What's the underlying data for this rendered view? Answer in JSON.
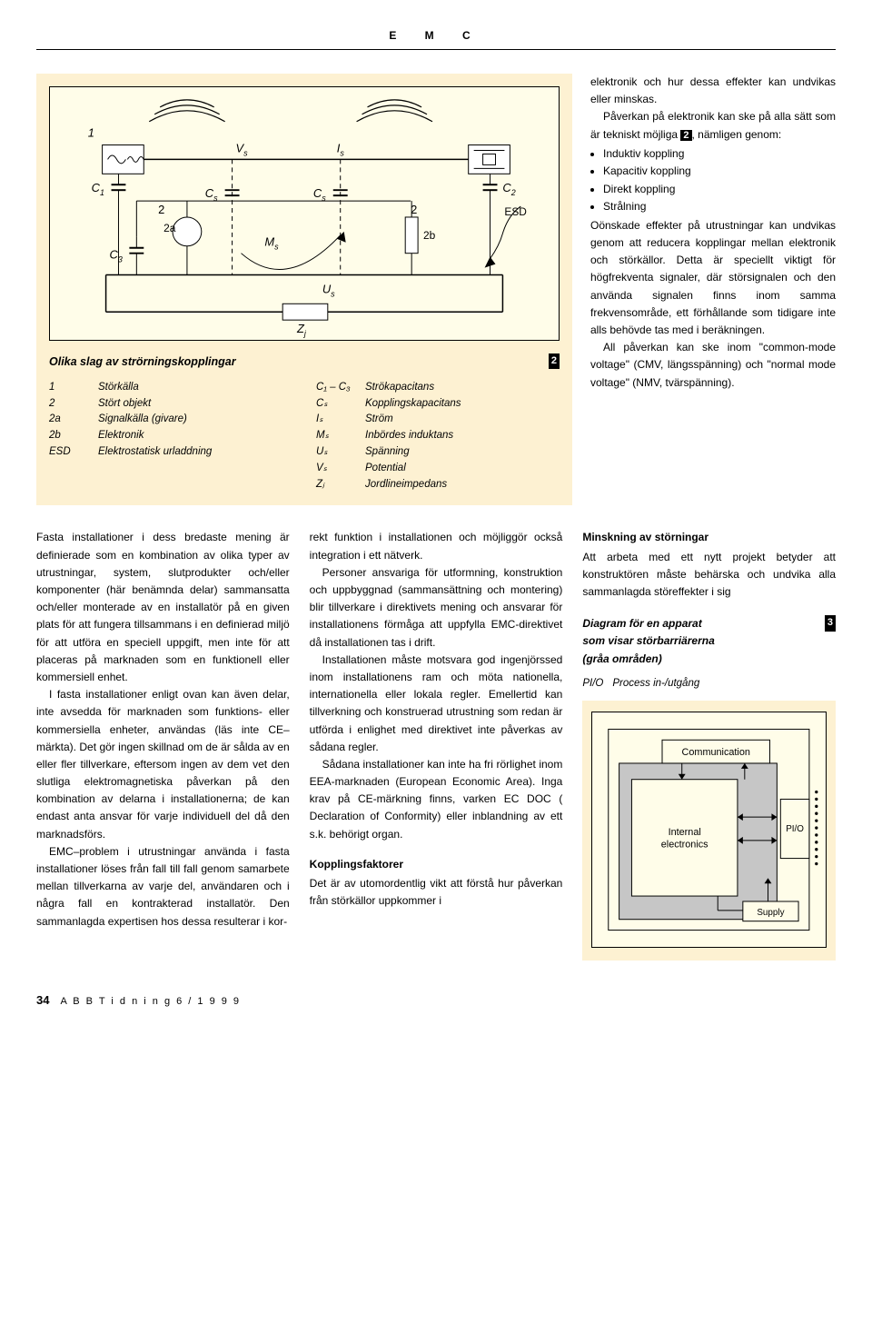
{
  "header": {
    "letters": "E M C"
  },
  "fig2": {
    "title": "Olika slag av strörningskopplingar",
    "number": "2",
    "circuit": {
      "labels": {
        "one": "1",
        "Vs": "V",
        "Vs_sub": "s",
        "Is": "I",
        "Is_sub": "s",
        "C1": "C",
        "C1_sub": "1",
        "C2": "C",
        "C2_sub": "2",
        "C3": "C",
        "C3_sub": "3",
        "Cs_a": "C",
        "Cs_a_sub": "s",
        "Cs_b": "C",
        "Cs_b_sub": "s",
        "Ms": "M",
        "Ms_sub": "s",
        "Us": "U",
        "Us_sub": "s",
        "Zj": "Z",
        "Zj_sub": "j",
        "two_a_outer": "2",
        "two_a": "2a",
        "two_b_outer": "2",
        "two_b": "2b",
        "ESD": "ESD"
      },
      "colors": {
        "wire": "#000000",
        "dashed": "#000000",
        "bg": "#fffde9"
      }
    },
    "legend_left": [
      {
        "k": "1",
        "v": "Störkälla"
      },
      {
        "k": "2",
        "v": "Stört objekt"
      },
      {
        "k": "2a",
        "v": "Signalkälla (givare)"
      },
      {
        "k": "2b",
        "v": "Elektronik"
      },
      {
        "k": "",
        "v": ""
      },
      {
        "k": "ESD",
        "v": "Elektrostatisk urladdning"
      }
    ],
    "legend_right": [
      {
        "k": "C₁ – C₃",
        "v": "Strökapacitans"
      },
      {
        "k": "Cₛ",
        "v": "Kopplingskapacitans"
      },
      {
        "k": "Iₛ",
        "v": "Ström"
      },
      {
        "k": "Mₛ",
        "v": "Inbördes induktans"
      },
      {
        "k": "Uₛ",
        "v": "Spänning"
      },
      {
        "k": "Vₛ",
        "v": "Potential"
      },
      {
        "k": "Zⱼ",
        "v": "Jordlineimpedans"
      }
    ]
  },
  "right_col": {
    "p1": "elektronik och hur dessa effekter kan undvikas eller minskas.",
    "p2a": "Påverkan på elektronik kan ske på alla sätt som är tekniskt möjliga ",
    "p2_ref": "2",
    "p2b": ", nämligen genom:",
    "bullets": [
      "Induktiv koppling",
      "Kapacitiv koppling",
      "Direkt koppling",
      "Strålning"
    ],
    "p3": "Oönskade effekter på utrustningar kan undvikas genom att reducera kopplingar mellan elektronik och störkällor. Detta är speciellt viktigt för högfrekventa signaler, där störsignalen och den använda signalen finns inom samma frekvensområde, ett förhållande som tidigare inte alls behövde tas med i beräkningen.",
    "p4": "All påverkan kan ske inom \"common-mode voltage\" (CMV, längsspänning) och \"normal mode voltage\" (NMV, tvärspänning)."
  },
  "col_a": {
    "p1": "Fasta installationer i dess bredaste mening är definierade som en kombination av olika typer av utrustningar, system, slutprodukter och/eller komponenter (här benämnda delar) sammansatta och/eller monterade av en installatör på en given plats för att fungera tillsammans i en definierad miljö för att utföra en speciell uppgift, men inte för att placeras på marknaden som en funktionell eller kommersiell enhet.",
    "p2": "I fasta installationer enligt ovan kan även delar, inte avsedda för marknaden som funktions- eller kommersiella enheter, användas (läs inte CE–märkta). Det gör ingen skillnad om de är sålda av en eller fler tillverkare, eftersom ingen av dem vet den slutliga elektromagnetiska påverkan på den kombination av delarna i installationerna; de kan endast anta ansvar för varje individuell del då den marknadsförs.",
    "p3": "EMC–problem i utrustningar använda i fasta installationer löses från fall till fall genom samarbete mellan tillverkarna av varje del, användaren och i några fall en kontrakterad installatör. Den sammanlagda expertisen hos dessa resulterar i kor-"
  },
  "col_b": {
    "p1": "rekt funktion i installationen och möjliggör också integration i ett nätverk.",
    "p2": "Personer ansvariga för utformning, konstruktion och uppbyggnad (sammansättning och montering) blir tillverkare i direktivets mening och ansvarar för installationens förmåga att uppfylla EMC-direktivet då installationen tas i drift.",
    "p3": "Installationen måste motsvara god ingenjörssed inom installationens ram och möta nationella, internationella eller lokala regler. Emellertid kan tillverkning och konstruerad utrustning som redan är utförda i enlighet med direktivet inte påverkas av sådana regler.",
    "p4": "Sådana installationer kan inte ha fri rörlighet inom EEA-marknaden (European Economic Area). Inga krav på CE-märkning finns, varken EC DOC ( Declaration of Conformity) eller inblandning av ett s.k. behörigt organ.",
    "h": "Kopplingsfaktorer",
    "p5": "Det är av utomordentlig vikt att förstå hur påverkan från störkällor uppkommer i"
  },
  "col_c": {
    "h1": "Minskning av störningar",
    "p1": "Att arbeta med ett nytt projekt betyder att konstruktören måste behärska och undvika alla sammanlagda störeffekter i sig",
    "fig3_title1": "Diagram för en apparat",
    "fig3_title2": "som visar störbarriärerna",
    "fig3_title3": "(gråa områden)",
    "fig3_num": "3",
    "fig3_legend_k": "PI/O",
    "fig3_legend_v": "Process in-/utgång",
    "fig3_labels": {
      "comm": "Communication",
      "internal1": "Internal",
      "internal2": "electronics",
      "pio": "PI/O",
      "supply": "Supply"
    },
    "fig3_colors": {
      "barrier": "#c6c6c6",
      "line": "#000000"
    }
  },
  "footer": {
    "page": "34",
    "pub": "A B B  T i d n i n g  6 / 1 9 9 9"
  }
}
